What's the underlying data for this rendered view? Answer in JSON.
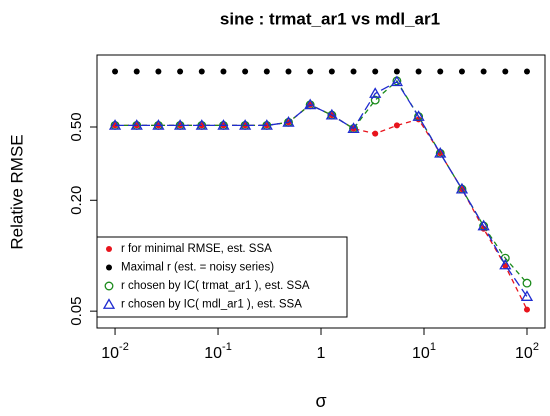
{
  "chart_data": {
    "type": "scatter",
    "title": "sine :  trmat_ar1 vs mdl_ar1",
    "xlabel": "σ",
    "ylabel": "Relative RMSE",
    "xscale": "log",
    "yscale": "log",
    "xlim": [
      0.00668,
      149.6
    ],
    "ylim": [
      0.0405,
      1.23
    ],
    "xticks": [
      {
        "value": 0.01,
        "label": "10",
        "exponent": "-2"
      },
      {
        "value": 0.1,
        "label": "10",
        "exponent": "-1"
      },
      {
        "value": 1,
        "label": "1"
      },
      {
        "value": 10,
        "label": "10",
        "exponent": "1"
      },
      {
        "value": 100,
        "label": "10",
        "exponent": "2"
      }
    ],
    "yticks": [
      0.05,
      {
        "value": 0.2,
        "label": "0.20"
      },
      {
        "value": 0.5,
        "label": "0.50"
      }
    ],
    "legend": "bottomleft",
    "x": [
      0.01,
      0.01624,
      0.02637,
      0.04281,
      0.06952,
      0.1129,
      0.1833,
      0.2976,
      0.4833,
      0.7848,
      1.274,
      2.069,
      3.36,
      5.456,
      8.859,
      14.38,
      23.36,
      37.93,
      61.58,
      100
    ],
    "series": [
      {
        "name": "r for minimal RMSE, est. SSA",
        "color": "#e8141c",
        "marker": "dot",
        "linestyle": "dashed",
        "values": [
          0.51,
          0.51,
          0.51,
          0.51,
          0.51,
          0.51,
          0.51,
          0.51,
          0.53,
          0.66,
          0.58,
          0.49,
          0.46,
          0.51,
          0.55,
          0.36,
          0.23,
          0.14,
          0.088,
          0.051
        ]
      },
      {
        "name": "Maximal r (est. = noisy series)",
        "color": "#000000",
        "marker": "dot",
        "linestyle": "none",
        "values": [
          1,
          1,
          1,
          1,
          1,
          1,
          1,
          1,
          1,
          1,
          1,
          1,
          1,
          1,
          1,
          1,
          1,
          1,
          1,
          1
        ]
      },
      {
        "name": "r chosen by IC( trmat_ar1 ), est. SSA",
        "color": "#1a8a1a",
        "marker": "circle",
        "linestyle": "dashed",
        "values": [
          0.51,
          0.51,
          0.51,
          0.51,
          0.51,
          0.51,
          0.51,
          0.51,
          0.53,
          0.66,
          0.58,
          0.49,
          0.7,
          0.89,
          0.57,
          0.36,
          0.23,
          0.145,
          0.097,
          0.071
        ]
      },
      {
        "name": "r chosen by IC( mdl_ar1 ), est. SSA",
        "color": "#1f2bd0",
        "marker": "triangle",
        "linestyle": "longdash",
        "values": [
          0.51,
          0.51,
          0.51,
          0.51,
          0.51,
          0.51,
          0.51,
          0.51,
          0.53,
          0.66,
          0.58,
          0.49,
          0.76,
          0.88,
          0.57,
          0.36,
          0.23,
          0.145,
          0.089,
          0.06
        ]
      }
    ]
  }
}
